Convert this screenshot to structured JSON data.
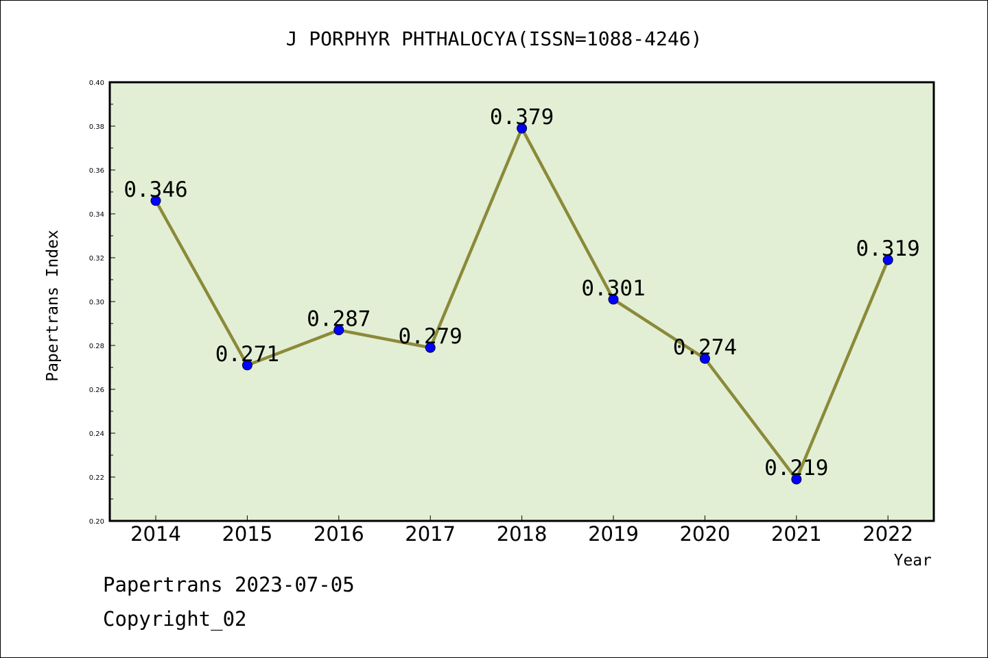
{
  "chart_data": {
    "type": "line",
    "title": "J PORPHYR PHTHALOCYA(ISSN=1088-4246)",
    "xlabel": "Year",
    "ylabel": "Papertrans Index",
    "categories": [
      "2014",
      "2015",
      "2016",
      "2017",
      "2018",
      "2019",
      "2020",
      "2021",
      "2022"
    ],
    "series": [
      {
        "values": [
          0.346,
          0.271,
          0.287,
          0.279,
          0.379,
          0.301,
          0.274,
          0.219,
          0.319
        ],
        "labels": [
          "0.346",
          "0.271",
          "0.287",
          "0.279",
          "0.379",
          "0.301",
          "0.274",
          "0.219",
          "0.319"
        ],
        "line_color": "#8b8a3a",
        "marker_color": "#0000ff"
      }
    ],
    "ylim": [
      0.2,
      0.4
    ],
    "yticks": [
      "0.20",
      "0.22",
      "0.24",
      "0.26",
      "0.28",
      "0.30",
      "0.32",
      "0.34",
      "0.36",
      "0.38",
      "0.40"
    ],
    "plot_background": "#e2efd5",
    "grid": false,
    "legend": "none"
  },
  "footer": {
    "line1": "Papertrans 2023-07-05",
    "line2": "Copyright_02"
  }
}
